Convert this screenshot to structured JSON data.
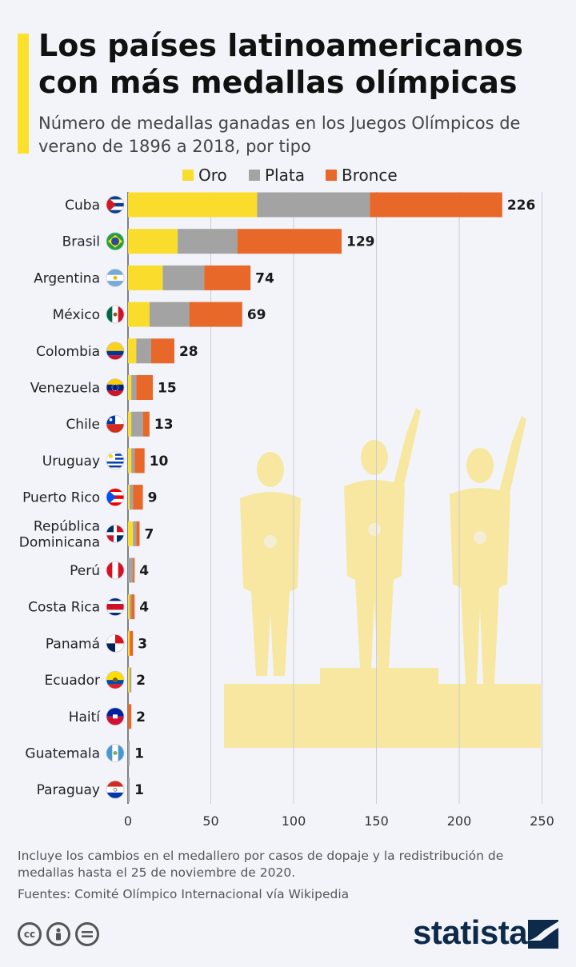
{
  "header": {
    "title": "Los países latinoamericanos con más medallas olímpicas",
    "subtitle": "Número de medallas ganadas en los Juegos Olímpicos de verano de 1896 a 2018, por tipo"
  },
  "colors": {
    "accent": "#fbe12b",
    "oro": "#fadc2d",
    "plata": "#a3a3a3",
    "bronce": "#e8682a",
    "silhouette": "#f7e7a0",
    "grid": "#c9ccd2"
  },
  "chart_data": {
    "type": "bar",
    "orientation": "horizontal",
    "stacked": true,
    "categories": [
      "Cuba",
      "Brasil",
      "Argentina",
      "México",
      "Colombia",
      "Venezuela",
      "Chile",
      "Uruguay",
      "Puerto Rico",
      "República Dominicana",
      "Perú",
      "Costa Rica",
      "Panamá",
      "Ecuador",
      "Haití",
      "Guatemala",
      "Paraguay"
    ],
    "category_lines": [
      [
        "Cuba"
      ],
      [
        "Brasil"
      ],
      [
        "Argentina"
      ],
      [
        "México"
      ],
      [
        "Colombia"
      ],
      [
        "Venezuela"
      ],
      [
        "Chile"
      ],
      [
        "Uruguay"
      ],
      [
        "Puerto Rico"
      ],
      [
        "República",
        "Dominicana"
      ],
      [
        "Perú"
      ],
      [
        "Costa Rica"
      ],
      [
        "Panamá"
      ],
      [
        "Ecuador"
      ],
      [
        "Haití"
      ],
      [
        "Guatemala"
      ],
      [
        "Paraguay"
      ]
    ],
    "series": [
      {
        "name": "Oro",
        "values": [
          78,
          30,
          21,
          13,
          5,
          2,
          2,
          2,
          1,
          3,
          0,
          1,
          1,
          1,
          0,
          0,
          0
        ]
      },
      {
        "name": "Plata",
        "values": [
          68,
          36,
          25,
          24,
          9,
          3,
          7,
          2,
          2,
          2,
          3,
          1,
          0,
          1,
          0,
          1,
          1
        ]
      },
      {
        "name": "Bronce",
        "values": [
          80,
          63,
          28,
          32,
          14,
          10,
          4,
          6,
          6,
          2,
          1,
          2,
          2,
          0,
          2,
          0,
          0
        ]
      }
    ],
    "totals": [
      226,
      129,
      74,
      69,
      28,
      15,
      13,
      10,
      9,
      7,
      4,
      4,
      3,
      2,
      2,
      1,
      1
    ],
    "total_labels": [
      "226",
      "129",
      "74",
      "69",
      "28",
      "15",
      "13",
      "10",
      "9",
      "7",
      "4",
      "4",
      "3",
      "2",
      "2",
      "1",
      "1"
    ],
    "x_ticks": [
      0,
      50,
      100,
      150,
      200,
      250
    ],
    "x_tick_labels": [
      "0",
      "50",
      "100",
      "150",
      "200",
      "250"
    ],
    "xlim": [
      0,
      250
    ],
    "grid": true,
    "legend_position": "top"
  },
  "footer": {
    "note": "Incluye los cambios en el medallero por casos de dopaje y la redistribución de medallas hasta el 25 de noviembre de 2020.",
    "source": "Fuentes: Comité Olímpico Internacional vía Wikipedia",
    "license_icons": [
      "cc-icon",
      "by-icon",
      "nd-icon"
    ],
    "brand": "statista"
  }
}
